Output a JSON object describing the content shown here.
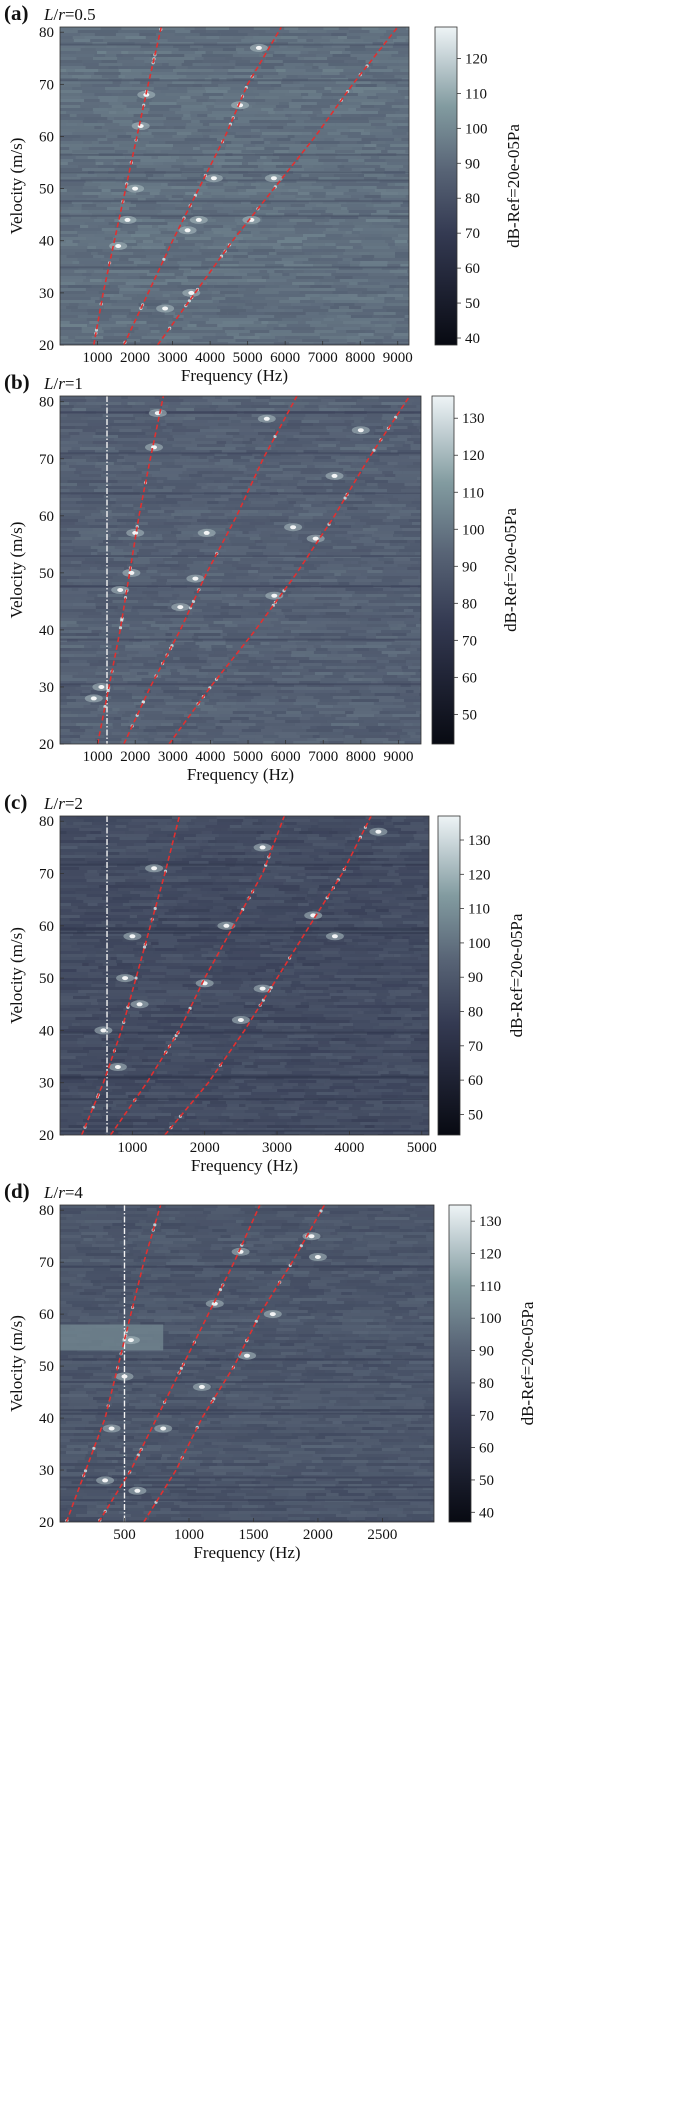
{
  "chart_data": [
    {
      "type": "heatmap",
      "panel_label": "(a)",
      "param_label": "L/r=0.5",
      "xlabel": "Frequency (Hz)",
      "ylabel": "Velocity (m/s)",
      "colorbar_label": "dB-Ref=20e-05Pa",
      "xlim": [
        0,
        9300
      ],
      "ylim": [
        20,
        81
      ],
      "x_ticks": [
        1000,
        2000,
        3000,
        4000,
        5000,
        6000,
        7000,
        8000,
        9000
      ],
      "y_ticks": [
        20,
        30,
        40,
        50,
        60,
        70,
        80
      ],
      "colorbar_ticks": [
        40,
        50,
        60,
        70,
        80,
        90,
        100,
        110,
        120
      ],
      "colorbar_range": [
        38,
        129
      ],
      "background_level_db": 92,
      "trend_lines": [
        {
          "style": "red-dashed",
          "points": [
            [
              900,
              20
            ],
            [
              1150,
              30
            ],
            [
              1450,
              40
            ],
            [
              1750,
              50
            ],
            [
              2050,
              60
            ],
            [
              2350,
              70
            ],
            [
              2700,
              81
            ]
          ]
        },
        {
          "style": "red-dashed",
          "points": [
            [
              1700,
              20
            ],
            [
              2350,
              30
            ],
            [
              3000,
              40
            ],
            [
              3700,
              50
            ],
            [
              4400,
              60
            ],
            [
              5000,
              70
            ],
            [
              5900,
              81
            ]
          ]
        },
        {
          "style": "red-dashed",
          "points": [
            [
              2600,
              20
            ],
            [
              3600,
              30
            ],
            [
              4600,
              40
            ],
            [
              5700,
              50
            ],
            [
              6800,
              60
            ],
            [
              7800,
              70
            ],
            [
              9000,
              81
            ]
          ]
        }
      ],
      "hotspots": [
        [
          2300,
          68
        ],
        [
          2150,
          62
        ],
        [
          2000,
          50
        ],
        [
          1800,
          44
        ],
        [
          1550,
          39
        ],
        [
          5300,
          77
        ],
        [
          4800,
          66
        ],
        [
          4100,
          52
        ],
        [
          3700,
          44
        ],
        [
          3400,
          42
        ],
        [
          5100,
          44
        ],
        [
          5700,
          52
        ],
        [
          3500,
          30
        ],
        [
          2800,
          27
        ]
      ]
    },
    {
      "type": "heatmap",
      "panel_label": "(b)",
      "param_label": "L/r=1",
      "xlabel": "Frequency (Hz)",
      "ylabel": "Velocity (m/s)",
      "colorbar_label": "dB-Ref=20e-05Pa",
      "xlim": [
        0,
        9600
      ],
      "ylim": [
        20,
        81
      ],
      "x_ticks": [
        1000,
        2000,
        3000,
        4000,
        5000,
        6000,
        7000,
        8000,
        9000
      ],
      "y_ticks": [
        20,
        30,
        40,
        50,
        60,
        70,
        80
      ],
      "colorbar_ticks": [
        50,
        60,
        70,
        80,
        90,
        100,
        110,
        120,
        130
      ],
      "colorbar_range": [
        42,
        136
      ],
      "background_level_db": 92,
      "vertical_reference_x": 1250,
      "trend_lines": [
        {
          "style": "red-dashed",
          "points": [
            [
              1000,
              20
            ],
            [
              1300,
              30
            ],
            [
              1600,
              40
            ],
            [
              1850,
              50
            ],
            [
              2100,
              60
            ],
            [
              2400,
              70
            ],
            [
              2750,
              81
            ]
          ]
        },
        {
          "style": "red-dashed",
          "points": [
            [
              1700,
              20
            ],
            [
              2400,
              30
            ],
            [
              3200,
              40
            ],
            [
              3900,
              50
            ],
            [
              4700,
              60
            ],
            [
              5400,
              70
            ],
            [
              6300,
              81
            ]
          ]
        },
        {
          "style": "red-dashed",
          "points": [
            [
              2900,
              20
            ],
            [
              4000,
              30
            ],
            [
              5200,
              40
            ],
            [
              6300,
              50
            ],
            [
              7300,
              60
            ],
            [
              8200,
              70
            ],
            [
              9300,
              81
            ]
          ]
        }
      ],
      "hotspots": [
        [
          2600,
          78
        ],
        [
          2500,
          72
        ],
        [
          2000,
          57
        ],
        [
          1900,
          50
        ],
        [
          1600,
          47
        ],
        [
          1100,
          30
        ],
        [
          900,
          28
        ],
        [
          3900,
          57
        ],
        [
          3600,
          49
        ],
        [
          3200,
          44
        ],
        [
          5500,
          77
        ],
        [
          6200,
          58
        ],
        [
          5700,
          46
        ],
        [
          8000,
          75
        ],
        [
          7300,
          67
        ],
        [
          6800,
          56
        ]
      ]
    },
    {
      "type": "heatmap",
      "panel_label": "(c)",
      "param_label": "L/r=2",
      "xlabel": "Frequency (Hz)",
      "ylabel": "Velocity (m/s)",
      "colorbar_label": "dB-Ref=20e-05Pa",
      "xlim": [
        0,
        5100
      ],
      "ylim": [
        20,
        81
      ],
      "x_ticks": [
        1000,
        2000,
        3000,
        4000,
        5000
      ],
      "y_ticks": [
        20,
        30,
        40,
        50,
        60,
        70,
        80
      ],
      "colorbar_ticks": [
        50,
        60,
        70,
        80,
        90,
        100,
        110,
        120,
        130
      ],
      "colorbar_range": [
        44,
        137
      ],
      "background_level_db": 85,
      "vertical_reference_x": 650,
      "trend_lines": [
        {
          "style": "red-dashed",
          "points": [
            [
              300,
              20
            ],
            [
              600,
              30
            ],
            [
              850,
              40
            ],
            [
              1050,
              50
            ],
            [
              1250,
              60
            ],
            [
              1450,
              70
            ],
            [
              1650,
              81
            ]
          ]
        },
        {
          "style": "red-dashed",
          "points": [
            [
              700,
              20
            ],
            [
              1200,
              30
            ],
            [
              1650,
              40
            ],
            [
              2000,
              50
            ],
            [
              2400,
              60
            ],
            [
              2800,
              70
            ],
            [
              3100,
              81
            ]
          ]
        },
        {
          "style": "red-dashed",
          "points": [
            [
              1450,
              20
            ],
            [
              2050,
              30
            ],
            [
              2550,
              40
            ],
            [
              3000,
              50
            ],
            [
              3450,
              60
            ],
            [
              3900,
              70
            ],
            [
              4300,
              81
            ]
          ]
        }
      ],
      "hotspots": [
        [
          1300,
          71
        ],
        [
          1000,
          58
        ],
        [
          900,
          50
        ],
        [
          1100,
          45
        ],
        [
          800,
          33
        ],
        [
          2300,
          60
        ],
        [
          2000,
          49
        ],
        [
          2800,
          75
        ],
        [
          2800,
          48
        ],
        [
          2500,
          42
        ],
        [
          3500,
          62
        ],
        [
          3800,
          58
        ],
        [
          4400,
          78
        ],
        [
          600,
          40
        ]
      ]
    },
    {
      "type": "heatmap",
      "panel_label": "(d)",
      "param_label": "L/r=4",
      "xlabel": "Frequency (Hz)",
      "ylabel": "Velocity (m/s)",
      "colorbar_label": "dB-Ref=20e-05Pa",
      "xlim": [
        0,
        2900
      ],
      "ylim": [
        20,
        81
      ],
      "x_ticks": [
        500,
        1000,
        1500,
        2000,
        2500
      ],
      "y_ticks": [
        20,
        30,
        40,
        50,
        60,
        70,
        80
      ],
      "colorbar_ticks": [
        40,
        50,
        60,
        70,
        80,
        90,
        100,
        110,
        120,
        130
      ],
      "colorbar_range": [
        37,
        135
      ],
      "background_level_db": 85,
      "vertical_reference_x": 500,
      "bright_band_velocity": [
        53,
        58
      ],
      "trend_lines": [
        {
          "style": "red-dashed",
          "points": [
            [
              50,
              20
            ],
            [
              200,
              30
            ],
            [
              350,
              40
            ],
            [
              450,
              50
            ],
            [
              550,
              60
            ],
            [
              650,
              70
            ],
            [
              780,
              81
            ]
          ]
        },
        {
          "style": "red-dashed",
          "points": [
            [
              300,
              20
            ],
            [
              550,
              30
            ],
            [
              750,
              40
            ],
            [
              950,
              50
            ],
            [
              1150,
              60
            ],
            [
              1350,
              70
            ],
            [
              1550,
              81
            ]
          ]
        },
        {
          "style": "red-dashed",
          "points": [
            [
              650,
              20
            ],
            [
              900,
              30
            ],
            [
              1100,
              40
            ],
            [
              1350,
              50
            ],
            [
              1550,
              60
            ],
            [
              1800,
              70
            ],
            [
              2050,
              81
            ]
          ]
        }
      ],
      "hotspots": [
        [
          550,
          55
        ],
        [
          500,
          48
        ],
        [
          400,
          38
        ],
        [
          350,
          28
        ],
        [
          1200,
          62
        ],
        [
          1400,
          72
        ],
        [
          1450,
          52
        ],
        [
          1100,
          46
        ],
        [
          800,
          38
        ],
        [
          1950,
          75
        ],
        [
          2000,
          71
        ],
        [
          1650,
          60
        ],
        [
          600,
          26
        ]
      ]
    }
  ]
}
